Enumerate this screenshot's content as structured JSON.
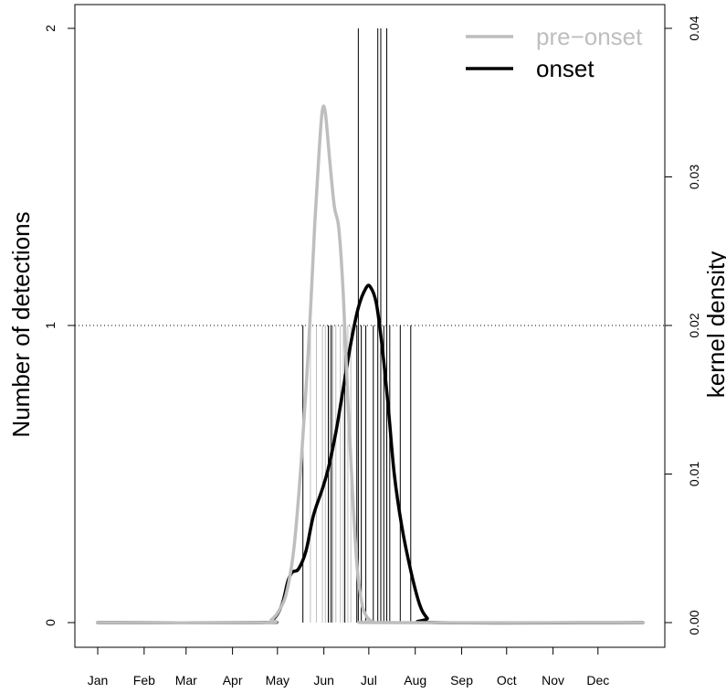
{
  "chart_data": {
    "type": "line",
    "title": "",
    "xlabel": "",
    "ylabel_left": "Number of detections",
    "ylabel_right": "kernel density",
    "x_ticks": [
      "Jan",
      "Feb",
      "Mar",
      "Apr",
      "May",
      "Jun",
      "Jul",
      "Aug",
      "Sep",
      "Oct",
      "Nov",
      "Dec"
    ],
    "x_tick_days": [
      1,
      32,
      60,
      91,
      121,
      152,
      182,
      213,
      244,
      274,
      305,
      335
    ],
    "xlim_days": [
      1,
      365
    ],
    "y_left_ticks": [
      "0",
      "1",
      "2"
    ],
    "y_left_lim": [
      0,
      2
    ],
    "y_right_ticks": [
      "0.00",
      "0.01",
      "0.02",
      "0.03",
      "0.04"
    ],
    "y_right_lim": [
      0,
      0.04
    ],
    "reference_line": {
      "y": 1,
      "style": "dotted"
    },
    "legend": {
      "position": "top-right",
      "entries": [
        {
          "label": "pre−onset",
          "color": "#bebebe"
        },
        {
          "label": "onset",
          "color": "#000000"
        }
      ]
    },
    "detections_pre_onset": [
      {
        "day": 143,
        "count": 1
      },
      {
        "day": 147,
        "count": 1
      },
      {
        "day": 151,
        "count": 1
      },
      {
        "day": 153,
        "count": 1
      },
      {
        "day": 155,
        "count": 1
      },
      {
        "day": 156,
        "count": 1
      },
      {
        "day": 157,
        "count": 1
      },
      {
        "day": 158,
        "count": 1
      },
      {
        "day": 160,
        "count": 1
      },
      {
        "day": 163,
        "count": 1
      },
      {
        "day": 165,
        "count": 1
      },
      {
        "day": 168,
        "count": 1
      },
      {
        "day": 170,
        "count": 1
      }
    ],
    "detections_onset": [
      {
        "day": 138,
        "count": 1
      },
      {
        "day": 155,
        "count": 1
      },
      {
        "day": 157,
        "count": 1
      },
      {
        "day": 166,
        "count": 1
      },
      {
        "day": 174,
        "count": 1
      },
      {
        "day": 175,
        "count": 2
      },
      {
        "day": 177,
        "count": 1
      },
      {
        "day": 180,
        "count": 1
      },
      {
        "day": 185,
        "count": 1
      },
      {
        "day": 188,
        "count": 2
      },
      {
        "day": 190,
        "count": 2
      },
      {
        "day": 192,
        "count": 1
      },
      {
        "day": 194,
        "count": 2
      },
      {
        "day": 196,
        "count": 1
      },
      {
        "day": 203,
        "count": 1
      },
      {
        "day": 210,
        "count": 1
      }
    ],
    "series": [
      {
        "name": "pre−onset",
        "color": "#bebebe",
        "axis": "right",
        "points": [
          [
            1,
            0
          ],
          [
            110,
            0
          ],
          [
            117,
            0.0002
          ],
          [
            122,
            0.0008
          ],
          [
            127,
            0.002
          ],
          [
            132,
            0.005
          ],
          [
            137,
            0.011
          ],
          [
            142,
            0.019
          ],
          [
            146,
            0.027
          ],
          [
            149,
            0.032
          ],
          [
            151,
            0.0345
          ],
          [
            153,
            0.0343
          ],
          [
            156,
            0.031
          ],
          [
            159,
            0.028
          ],
          [
            162,
            0.0265
          ],
          [
            165,
            0.022
          ],
          [
            168,
            0.015
          ],
          [
            171,
            0.009
          ],
          [
            174,
            0.004
          ],
          [
            177,
            0.0015
          ],
          [
            180,
            0.0005
          ],
          [
            184,
            0.0001
          ],
          [
            190,
            0
          ],
          [
            365,
            0
          ]
        ]
      },
      {
        "name": "onset",
        "color": "#000000",
        "axis": "right",
        "points": [
          [
            1,
            0
          ],
          [
            110,
            0
          ],
          [
            118,
            0.0002
          ],
          [
            124,
            0.0012
          ],
          [
            128,
            0.0028
          ],
          [
            131,
            0.0034
          ],
          [
            135,
            0.0036
          ],
          [
            140,
            0.0048
          ],
          [
            145,
            0.0072
          ],
          [
            151,
            0.009
          ],
          [
            155,
            0.0104
          ],
          [
            160,
            0.0128
          ],
          [
            165,
            0.0158
          ],
          [
            170,
            0.0188
          ],
          [
            175,
            0.0212
          ],
          [
            180,
            0.0225
          ],
          [
            183,
            0.0226
          ],
          [
            187,
            0.0215
          ],
          [
            191,
            0.0185
          ],
          [
            195,
            0.0145
          ],
          [
            199,
            0.01
          ],
          [
            204,
            0.0065
          ],
          [
            210,
            0.0035
          ],
          [
            216,
            0.0012
          ],
          [
            221,
            0.0003
          ],
          [
            226,
            0
          ],
          [
            365,
            0
          ]
        ]
      }
    ]
  }
}
